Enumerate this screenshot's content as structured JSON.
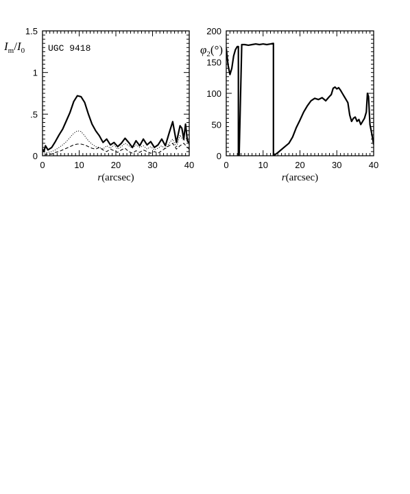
{
  "chart_data": [
    {
      "type": "line",
      "title": "",
      "annotation": "UGC 9418",
      "ylabel_text": "I",
      "ylabel_sub": "m",
      "ylabel_slash": "/",
      "ylabel_text2": "I",
      "ylabel_sub2": "0",
      "xlabel_var": "r",
      "xlabel_unit": "(arcsec)",
      "xlim": [
        0,
        40
      ],
      "ylim": [
        0,
        1.5
      ],
      "xticks": [
        0,
        10,
        20,
        30,
        40
      ],
      "xtick_labels": [
        "0",
        "10",
        "20",
        "30",
        "40"
      ],
      "yticks": [
        0,
        0.5,
        1,
        1.5
      ],
      "ytick_labels": [
        "0",
        ".5",
        "1",
        "1.5"
      ],
      "series": [
        {
          "style": "solid-thick",
          "x": [
            0,
            0.4,
            0.8,
            1.5,
            2.5,
            3.5,
            4.5,
            5.5,
            6.5,
            7.5,
            8.5,
            9.5,
            10.5,
            11.5,
            12.5,
            13.5,
            14.5,
            15.5,
            16.5,
            17.5,
            18.5,
            19.5,
            20.5,
            21.5,
            22.5,
            23.5,
            24.5,
            25.5,
            26.5,
            27.5,
            28.5,
            29.5,
            30.5,
            31.5,
            32.5,
            33.5,
            34.5,
            35.5,
            36.5,
            37.5,
            38.0,
            38.5,
            39.0,
            39.5,
            40
          ],
          "y": [
            0.08,
            0.05,
            0.12,
            0.07,
            0.1,
            0.17,
            0.25,
            0.32,
            0.42,
            0.52,
            0.65,
            0.72,
            0.71,
            0.64,
            0.5,
            0.38,
            0.3,
            0.24,
            0.16,
            0.2,
            0.13,
            0.16,
            0.11,
            0.15,
            0.21,
            0.16,
            0.1,
            0.18,
            0.12,
            0.2,
            0.13,
            0.17,
            0.1,
            0.13,
            0.2,
            0.12,
            0.27,
            0.41,
            0.16,
            0.36,
            0.33,
            0.2,
            0.38,
            0.18,
            0.15
          ]
        },
        {
          "style": "dotted",
          "x": [
            0.5,
            1.5,
            2.5,
            3.5,
            4.5,
            5.5,
            6.5,
            7.5,
            8.5,
            9.5,
            10.5,
            11.5,
            12.5,
            13.5,
            14.5,
            15.5,
            16.5,
            17.5,
            18.5,
            19.5,
            20.5,
            21.5,
            22.5,
            23.5,
            24.5,
            25.5,
            26.5,
            27.5,
            28.5,
            29.5,
            30.5,
            31.5,
            32.5,
            33.5,
            34.5,
            35.5,
            36.5,
            37.5,
            38.5,
            39.5,
            40
          ],
          "y": [
            0.03,
            0.04,
            0.05,
            0.07,
            0.1,
            0.13,
            0.17,
            0.22,
            0.27,
            0.3,
            0.29,
            0.24,
            0.18,
            0.14,
            0.11,
            0.1,
            0.08,
            0.12,
            0.09,
            0.13,
            0.08,
            0.11,
            0.15,
            0.12,
            0.09,
            0.13,
            0.1,
            0.12,
            0.08,
            0.11,
            0.07,
            0.09,
            0.12,
            0.08,
            0.15,
            0.2,
            0.1,
            0.25,
            0.18,
            0.22,
            0.12
          ]
        },
        {
          "style": "dashed",
          "x": [
            0.5,
            1.5,
            2.5,
            3.5,
            4.5,
            5.5,
            6.5,
            7.5,
            8.5,
            9.5,
            10.5,
            11.5,
            12.5,
            13.5,
            14.5,
            15.5,
            16.5,
            17.5,
            18.5,
            19.5,
            20.5,
            21.5,
            22.5,
            23.5,
            24.5,
            25.5,
            26.5,
            27.5,
            28.5,
            29.5,
            30.5,
            31.5,
            32.5,
            33.5,
            34.5,
            35.5,
            36.5,
            37.5,
            38.5,
            39.5,
            40
          ],
          "y": [
            0.01,
            0.02,
            0.02,
            0.04,
            0.05,
            0.07,
            0.09,
            0.11,
            0.13,
            0.14,
            0.14,
            0.13,
            0.11,
            0.09,
            0.08,
            0.1,
            0.07,
            0.05,
            0.08,
            0.06,
            0.04,
            0.07,
            0.09,
            0.05,
            0.03,
            0.06,
            0.04,
            0.07,
            0.05,
            0.03,
            0.05,
            0.03,
            0.06,
            0.09,
            0.12,
            0.15,
            0.08,
            0.12,
            0.15,
            0.1,
            0.08
          ]
        }
      ]
    },
    {
      "type": "line",
      "title": "",
      "ylabel_text": "φ",
      "ylabel_sub": "2",
      "ylabel_unit": "(°)",
      "xlabel_var": "r",
      "xlabel_unit": "(arcsec)",
      "xlim": [
        0,
        40
      ],
      "ylim": [
        0,
        200
      ],
      "xticks": [
        0,
        10,
        20,
        30,
        40
      ],
      "xtick_labels": [
        "0",
        "10",
        "20",
        "30",
        "40"
      ],
      "yticks": [
        0,
        50,
        100,
        150,
        200
      ],
      "ytick_labels": [
        "0",
        "50",
        "100",
        "150",
        "200"
      ],
      "series": [
        {
          "style": "solid-thick",
          "x": [
            0,
            0.5,
            1.0,
            1.5,
            2.0,
            2.5,
            3.0,
            3.3,
            3.3,
            3.5,
            4.2,
            5,
            6,
            7,
            8,
            9,
            10,
            11,
            12,
            12.8,
            12.8,
            14,
            15,
            16,
            17,
            18,
            19,
            20,
            21,
            22,
            23,
            24,
            25,
            26,
            27,
            28,
            28.5,
            29,
            29.5,
            30,
            30.5,
            31,
            31.5,
            32,
            32.5,
            33,
            33.5,
            34,
            34.5,
            35,
            35.5,
            36,
            36.5,
            37,
            37.5,
            38,
            38.3,
            38.6,
            39,
            39.5,
            40
          ],
          "y": [
            172,
            145,
            130,
            140,
            160,
            170,
            175,
            175,
            0,
            0,
            178,
            178,
            177,
            178,
            179,
            178,
            179,
            178,
            179,
            180,
            0,
            5,
            10,
            15,
            20,
            30,
            45,
            57,
            70,
            80,
            88,
            92,
            90,
            93,
            88,
            95,
            98,
            108,
            110,
            107,
            109,
            105,
            100,
            95,
            90,
            85,
            65,
            55,
            60,
            62,
            55,
            58,
            50,
            55,
            60,
            70,
            100,
            95,
            50,
            35,
            18
          ]
        }
      ]
    }
  ]
}
